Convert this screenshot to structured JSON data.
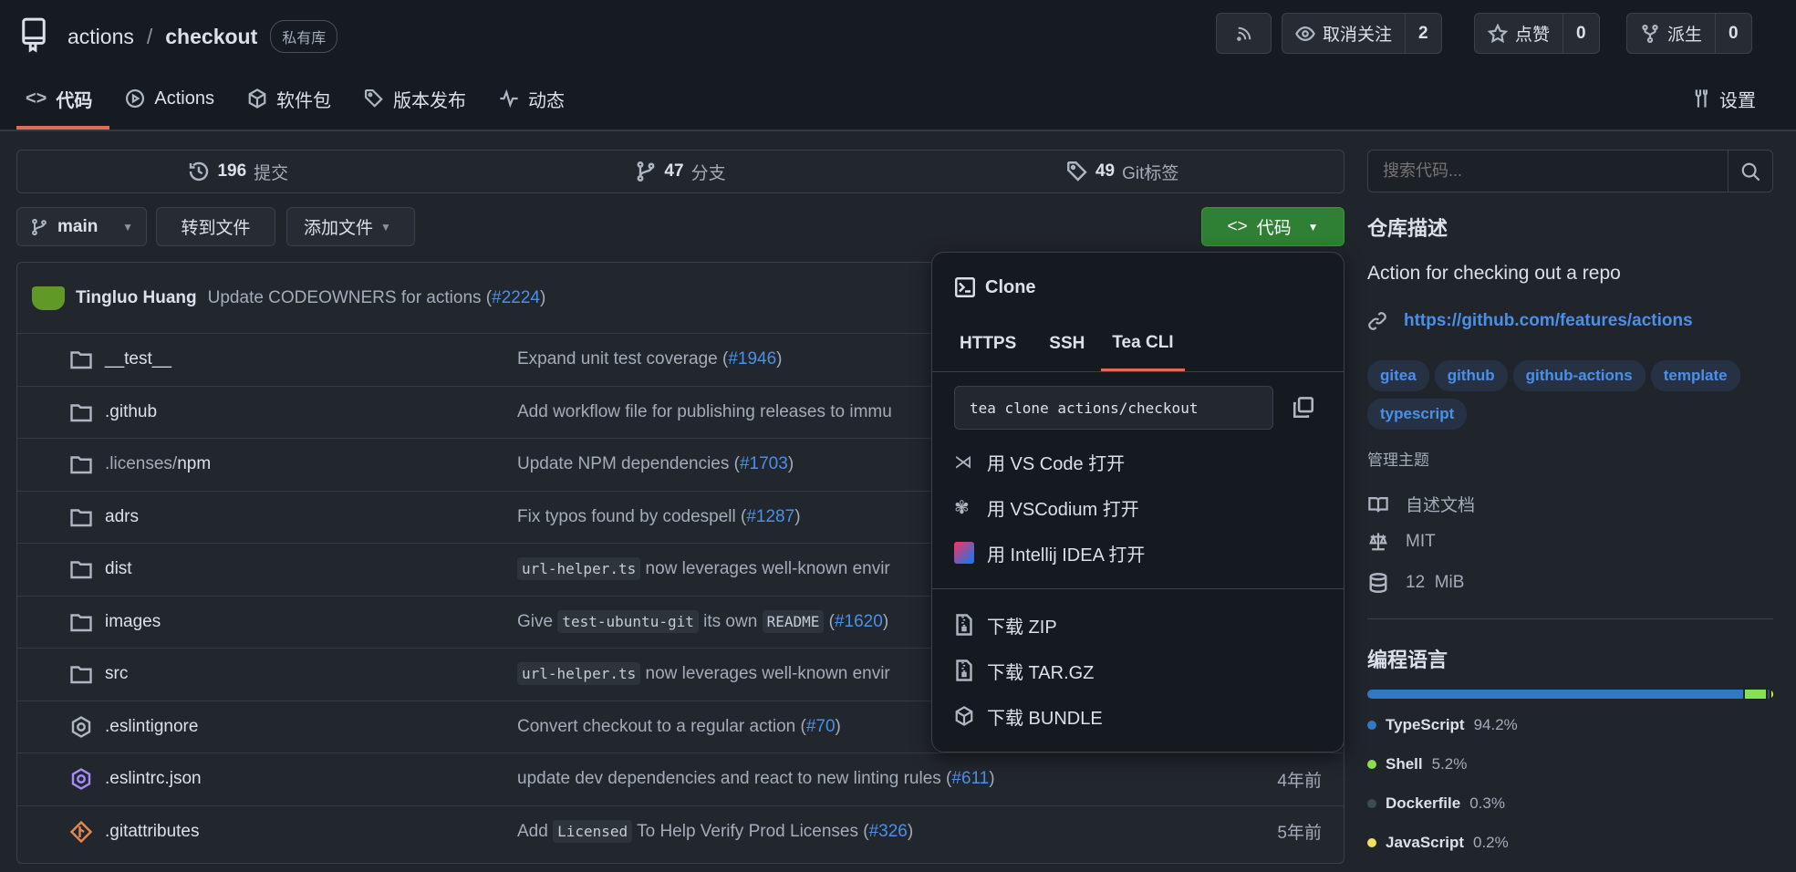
{
  "repo": {
    "owner": "actions",
    "separator": "/",
    "name": "checkout",
    "visibility": "私有库"
  },
  "header_buttons": {
    "watch_label": "取消关注",
    "watch_count": "2",
    "star_label": "点赞",
    "star_count": "0",
    "fork_label": "派生",
    "fork_count": "0"
  },
  "tabs": [
    {
      "label": "代码",
      "icon": "code-icon",
      "active": true
    },
    {
      "label": "Actions",
      "icon": "play-icon"
    },
    {
      "label": "软件包",
      "icon": "package-icon"
    },
    {
      "label": "版本发布",
      "icon": "tag-icon"
    },
    {
      "label": "动态",
      "icon": "pulse-icon"
    }
  ],
  "settings_label": "设置",
  "stats": {
    "commits_count": "196",
    "commits_label": "提交",
    "branches_count": "47",
    "branches_label": "分支",
    "tags_count": "49",
    "tags_label": "Git标签"
  },
  "search": {
    "placeholder": "搜索代码..."
  },
  "toolbar": {
    "branch": "main",
    "goto_file": "转到文件",
    "add_file": "添加文件",
    "code_button": "代码"
  },
  "latest_commit": {
    "author": "Tingluo Huang",
    "message": "Update CODEOWNERS for actions (",
    "pr": "#2224",
    "close": ")"
  },
  "files": [
    {
      "name": "__test__",
      "icon": "folder-test-icon",
      "pre": "Expand unit test coverage (",
      "pr": "#1946",
      "post": ")",
      "time": ""
    },
    {
      "name": ".github",
      "icon": "folder-github-icon",
      "pre": "Add workflow file for publishing releases to immu",
      "time": ""
    },
    {
      "name_dim": ".licenses/",
      "name": "npm",
      "icon": "folder-icon",
      "pre": "Update NPM dependencies (",
      "pr": "#1703",
      "post": ")",
      "time": ""
    },
    {
      "name": "adrs",
      "icon": "folder-icon",
      "pre": "Fix typos found by codespell (",
      "pr": "#1287",
      "post": ")",
      "time": ""
    },
    {
      "name": "dist",
      "icon": "folder-dist-icon",
      "code1": "url-helper.ts",
      "pre": " now leverages well-known envir",
      "time": ""
    },
    {
      "name": "images",
      "icon": "folder-images-icon",
      "pre": "Give ",
      "code1": "test-ubuntu-git",
      "mid": " its own ",
      "code2": "README",
      "post2": " (",
      "pr": "#1620",
      "post": ")",
      "time": ""
    },
    {
      "name": "src",
      "icon": "folder-src-icon",
      "code1": "url-helper.ts",
      "pre": " now leverages well-known envir",
      "time": ""
    },
    {
      "name": ".eslintignore",
      "icon": "eslint-icon",
      "pre": "Convert checkout to a regular action (",
      "pr": "#70",
      "post": ")",
      "time": ""
    },
    {
      "name": ".eslintrc.json",
      "icon": "eslint-icon",
      "pre": "update dev dependencies and react to new linting rules (",
      "pr": "#611",
      "post": ")",
      "time": "4年前"
    },
    {
      "name": ".gitattributes",
      "icon": "git-icon",
      "pre": "Add ",
      "code1": "Licensed",
      "mid": " To Help Verify Prod Licenses (",
      "pr": "#326",
      "post": ")",
      "time": "5年前"
    }
  ],
  "clone": {
    "title": "Clone",
    "tabs": [
      "HTTPS",
      "SSH",
      "Tea CLI"
    ],
    "active_tab": "Tea CLI",
    "command": "tea clone actions/checkout",
    "open_items": [
      "用 VS Code 打开",
      "用 VSCodium 打开",
      "用 Intellij IDEA 打开"
    ],
    "download_items": [
      "下载 ZIP",
      "下载 TAR.GZ",
      "下载 BUNDLE"
    ]
  },
  "sidebar": {
    "about_title": "仓库描述",
    "description": "Action for checking out a repo",
    "link": "https://github.com/features/actions",
    "topics": [
      "gitea",
      "github",
      "github-actions",
      "template",
      "typescript"
    ],
    "manage_topics": "管理主题",
    "readme": "自述文档",
    "license": "MIT",
    "size": "12  MiB",
    "languages_title": "编程语言"
  },
  "languages": [
    {
      "name": "TypeScript",
      "percent": "94.2%",
      "value": 94.2,
      "color": "#3178c6"
    },
    {
      "name": "Shell",
      "percent": "5.2%",
      "value": 5.2,
      "color": "#89e051"
    },
    {
      "name": "Dockerfile",
      "percent": "0.3%",
      "value": 0.3,
      "color": "#384d54"
    },
    {
      "name": "JavaScript",
      "percent": "0.2%",
      "value": 0.2,
      "color": "#f1e05a"
    }
  ]
}
